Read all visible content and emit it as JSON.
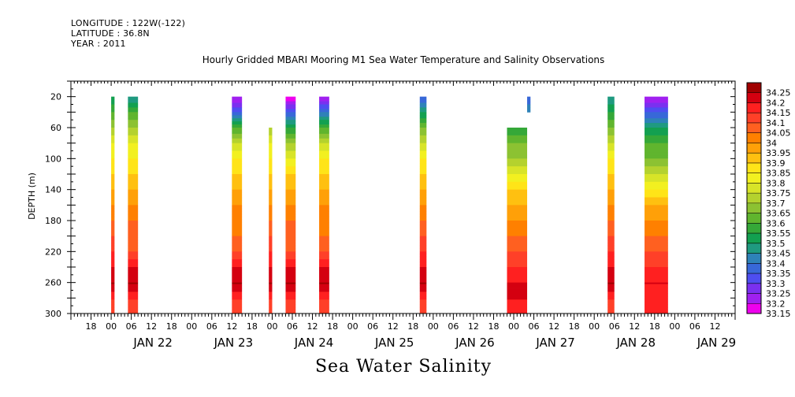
{
  "header": {
    "longitude": "LONGITUDE : 122W(-122)",
    "latitude": "LATITUDE : 36.8N",
    "year": "YEAR : 2011"
  },
  "title": "Hourly Gridded MBARI Mooring M1 Sea Water Temperature and Salinity Observations",
  "bottom_label": "Sea Water Salinity",
  "chart_data": {
    "type": "heatmap",
    "title": "Hourly Gridded MBARI Mooring M1 Sea Water Temperature and Salinity Observations",
    "xlabel": "",
    "ylabel": "DEPTH (m)",
    "variable": "Sea Water Salinity",
    "ylim": [
      300,
      0
    ],
    "y_reversed": true,
    "x_range_hours": [
      "2011-01-21 12:00",
      "2011-01-29 18:00"
    ],
    "x_ticks_hour_labels": [
      "18",
      "00",
      "06",
      "12",
      "18",
      "00",
      "06",
      "12",
      "18",
      "00",
      "06",
      "12",
      "18",
      "00",
      "06",
      "12",
      "18",
      "00",
      "06",
      "12",
      "18",
      "00",
      "06",
      "12",
      "18",
      "00",
      "06",
      "12",
      "18",
      "00",
      "06",
      "12"
    ],
    "x_day_labels": [
      "JAN 22",
      "JAN 23",
      "JAN 24",
      "JAN 25",
      "JAN 26",
      "JAN 27",
      "JAN 28",
      "JAN 29"
    ],
    "y_ticks": [
      20,
      60,
      100,
      140,
      180,
      220,
      260,
      300
    ],
    "colorbar_levels": [
      33.15,
      33.2,
      33.25,
      33.3,
      33.35,
      33.4,
      33.45,
      33.5,
      33.55,
      33.6,
      33.65,
      33.7,
      33.75,
      33.8,
      33.85,
      33.9,
      33.95,
      34,
      34.05,
      34.1,
      34.15,
      34.2,
      34.25
    ],
    "colorbar_colors": [
      "#ee00ee",
      "#a020f0",
      "#7a30f0",
      "#4e4ef0",
      "#3868d8",
      "#2e82b8",
      "#1f9a80",
      "#13a050",
      "#35a838",
      "#60b52e",
      "#8cc232",
      "#b4d22e",
      "#d8e428",
      "#f2f020",
      "#ffe418",
      "#ffc010",
      "#ffa008",
      "#ff8000",
      "#ff6020",
      "#ff4028",
      "#ff2020",
      "#d40010",
      "#a00000"
    ],
    "grid": false,
    "legend": "colorbar-right",
    "profiles": [
      {
        "start": "2011-01-22 00:00",
        "end": "2011-01-22 01:00",
        "top_depth": 20,
        "depths": [
          20,
          40,
          60,
          80,
          100,
          120,
          140,
          160,
          180,
          200,
          220,
          240,
          260,
          280,
          300
        ],
        "salinity": [
          33.5,
          33.6,
          33.7,
          33.8,
          33.85,
          33.9,
          33.95,
          34.0,
          34.05,
          34.1,
          34.15,
          34.2,
          34.25,
          34.15,
          34.1
        ]
      },
      {
        "start": "2011-01-22 05:00",
        "end": "2011-01-22 08:00",
        "top_depth": 20,
        "depths": [
          20,
          40,
          60,
          80,
          100,
          120,
          140,
          160,
          180,
          200,
          220,
          240,
          260,
          280,
          300
        ],
        "salinity": [
          33.45,
          33.6,
          33.7,
          33.8,
          33.85,
          33.9,
          33.95,
          34.0,
          34.05,
          34.05,
          34.1,
          34.2,
          34.25,
          34.15,
          34.1
        ]
      },
      {
        "start": "2011-01-23 12:00",
        "end": "2011-01-23 15:00",
        "top_depth": 20,
        "depths": [
          20,
          40,
          60,
          80,
          100,
          120,
          140,
          160,
          180,
          200,
          220,
          240,
          260,
          280,
          300
        ],
        "salinity": [
          33.2,
          33.35,
          33.6,
          33.75,
          33.85,
          33.9,
          33.95,
          34.0,
          34.0,
          34.05,
          34.1,
          34.2,
          34.25,
          34.15,
          34.1
        ]
      },
      {
        "start": "2011-01-23 23:00",
        "end": "2011-01-24 00:00",
        "top_depth": 60,
        "depths": [
          60,
          80,
          100,
          120,
          140,
          160,
          180,
          200,
          220,
          240,
          260,
          280,
          300
        ],
        "salinity": [
          33.7,
          33.8,
          33.85,
          33.9,
          33.95,
          34.0,
          34.05,
          34.1,
          34.15,
          34.2,
          34.25,
          34.15,
          34.1
        ]
      },
      {
        "start": "2011-01-24 04:00",
        "end": "2011-01-24 07:00",
        "top_depth": 20,
        "depths": [
          20,
          40,
          60,
          80,
          100,
          120,
          140,
          160,
          180,
          200,
          220,
          240,
          260,
          280,
          300
        ],
        "salinity": [
          33.15,
          33.35,
          33.55,
          33.7,
          33.8,
          33.9,
          33.95,
          34.0,
          34.05,
          34.05,
          34.1,
          34.2,
          34.25,
          34.15,
          34.1
        ]
      },
      {
        "start": "2011-01-24 14:00",
        "end": "2011-01-24 17:00",
        "top_depth": 20,
        "depths": [
          20,
          40,
          60,
          80,
          100,
          120,
          140,
          160,
          180,
          200,
          220,
          240,
          260,
          280,
          300
        ],
        "salinity": [
          33.2,
          33.4,
          33.6,
          33.75,
          33.85,
          33.9,
          33.95,
          34.0,
          34.0,
          34.05,
          34.1,
          34.2,
          34.25,
          34.15,
          34.1
        ]
      },
      {
        "start": "2011-01-25 20:00",
        "end": "2011-01-25 22:00",
        "top_depth": 20,
        "depths": [
          20,
          40,
          60,
          80,
          100,
          120,
          140,
          160,
          180,
          200,
          220,
          240,
          260,
          280,
          300
        ],
        "salinity": [
          33.35,
          33.5,
          33.65,
          33.75,
          33.85,
          33.9,
          33.95,
          34.0,
          34.05,
          34.1,
          34.15,
          34.2,
          34.25,
          34.15,
          34.1
        ]
      },
      {
        "start": "2011-01-26 22:00",
        "end": "2011-01-27 04:00",
        "top_depth": 60,
        "depths": [
          60,
          80,
          100,
          120,
          140,
          160,
          180,
          200,
          220,
          240,
          260,
          280,
          300
        ],
        "salinity": [
          33.55,
          33.65,
          33.7,
          33.8,
          33.9,
          33.95,
          34.0,
          34.05,
          34.1,
          34.15,
          34.2,
          34.2,
          34.15
        ]
      },
      {
        "start": "2011-01-27 04:00",
        "end": "2011-01-27 05:00",
        "top_depth": 20,
        "depths": [
          20,
          40
        ],
        "salinity": [
          33.35,
          33.45
        ]
      },
      {
        "start": "2011-01-28 04:00",
        "end": "2011-01-28 06:00",
        "top_depth": 20,
        "depths": [
          20,
          40,
          60,
          80,
          100,
          120,
          140,
          160,
          180,
          200,
          220,
          240,
          260,
          280,
          300
        ],
        "salinity": [
          33.45,
          33.55,
          33.65,
          33.75,
          33.85,
          33.9,
          33.95,
          34.0,
          34.05,
          34.1,
          34.15,
          34.2,
          34.25,
          34.15,
          34.1
        ]
      },
      {
        "start": "2011-01-28 15:00",
        "end": "2011-01-28 22:00",
        "top_depth": 20,
        "depths": [
          20,
          40,
          60,
          80,
          100,
          120,
          140,
          160,
          180,
          200,
          220,
          240,
          260,
          280,
          300
        ],
        "salinity": [
          33.2,
          33.35,
          33.5,
          33.6,
          33.65,
          33.75,
          33.85,
          33.95,
          34.0,
          34.05,
          34.1,
          34.15,
          34.2,
          34.15,
          34.15
        ]
      }
    ]
  }
}
